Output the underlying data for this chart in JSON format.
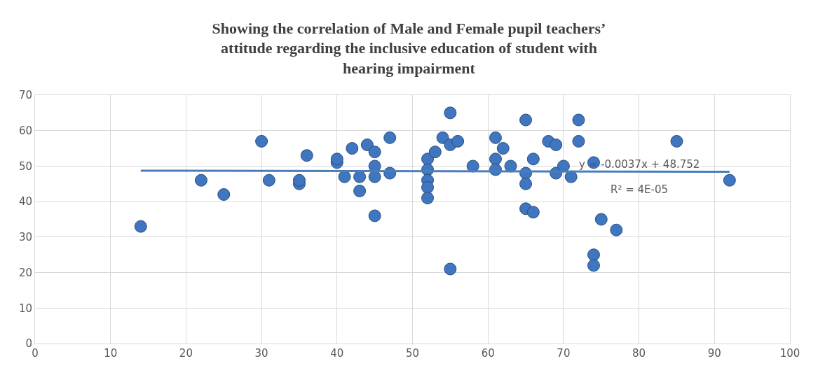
{
  "chart_data": {
    "type": "scatter",
    "title": "Showing the correlation of Male and Female pupil teachers’ attitude regarding the inclusive education of student with hearing impairment",
    "series": [
      {
        "color": "#3f76bf",
        "marker": "circle",
        "x": [
          14,
          22,
          25,
          30,
          31,
          35,
          35,
          36,
          40,
          40,
          41,
          42,
          43,
          43,
          44,
          45,
          45,
          45,
          45,
          47,
          47,
          52,
          52,
          52,
          52,
          52,
          53,
          54,
          55,
          55,
          55,
          56,
          58,
          61,
          61,
          61,
          62,
          63,
          65,
          65,
          65,
          65,
          66,
          66,
          68,
          69,
          69,
          70,
          71,
          72,
          72,
          74,
          74,
          74,
          75,
          77,
          85,
          92
        ],
        "values": [
          33,
          46,
          42,
          57,
          46,
          45,
          46,
          53,
          51,
          52,
          47,
          55,
          47,
          43,
          56,
          54,
          50,
          47,
          36,
          58,
          48,
          52,
          49,
          46,
          44,
          41,
          54,
          58,
          65,
          56,
          21,
          57,
          50,
          58,
          52,
          49,
          55,
          50,
          63,
          48,
          45,
          38,
          52,
          37,
          57,
          56,
          48,
          50,
          47,
          63,
          57,
          51,
          25,
          22,
          35,
          32,
          57,
          46
        ]
      },
      {
        "type": "line",
        "color": "#4a7ebb",
        "x": [
          14,
          92
        ],
        "values": [
          48.7,
          48.4
        ]
      }
    ],
    "annotations": [
      "y = -0.0037x + 48.752",
      "R² = 4E-05"
    ],
    "xlim": [
      0,
      100
    ],
    "xticks": [
      0,
      10,
      20,
      30,
      40,
      50,
      60,
      70,
      80,
      90,
      100
    ],
    "ylim": [
      0,
      70
    ],
    "yticks": [
      0,
      10,
      20,
      30,
      40,
      50,
      60,
      70
    ],
    "grid": true
  }
}
